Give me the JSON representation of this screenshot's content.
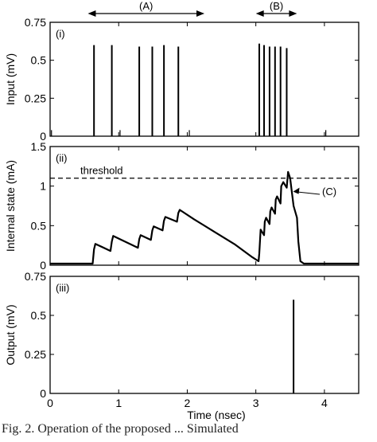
{
  "caption": "Fig. 2.  Operation of the proposed ...  Simulated",
  "top_annotations": [
    {
      "label": "(A)",
      "x_start": 0.55,
      "x_end": 2.25
    },
    {
      "label": "(B)",
      "x_start": 3.0,
      "x_end": 3.6
    }
  ],
  "chart_data": [
    {
      "type": "line",
      "panel_label": "(i)",
      "ylabel": "Input (mV)",
      "xlabel": "",
      "xlim": [
        0,
        4.5
      ],
      "ylim": [
        0,
        0.75
      ],
      "yticks": [
        "0",
        "0.25",
        "0.5",
        "0.75"
      ],
      "grid": false,
      "series": [
        {
          "style": "spikes",
          "spike_times": [
            0.64,
            0.9,
            1.3,
            1.49,
            1.66,
            1.87,
            3.05,
            3.12,
            3.2,
            3.28,
            3.36,
            3.45
          ],
          "spike_heights": [
            0.6,
            0.6,
            0.59,
            0.59,
            0.6,
            0.59,
            0.61,
            0.6,
            0.59,
            0.59,
            0.59,
            0.58
          ]
        },
        {
          "style": "noise_spikes",
          "spike_times": [
            0.02,
            1.02,
            2.03,
            4.02
          ],
          "spike_heights": [
            0.04,
            0.04,
            0.04,
            0.04
          ]
        }
      ]
    },
    {
      "type": "line",
      "panel_label": "(ii)",
      "ylabel": "Internal state (mA)",
      "xlabel": "",
      "xlim": [
        0,
        4.5
      ],
      "ylim": [
        0,
        1.5
      ],
      "yticks": [
        "0",
        "0.5",
        "1",
        "1.5"
      ],
      "grid": false,
      "threshold": {
        "value": 1.1,
        "label": "threshold"
      },
      "annotation": {
        "label": "(C)",
        "x": 3.52,
        "y": 0.93
      },
      "series": [
        {
          "points": [
            [
              0,
              0.02
            ],
            [
              0.62,
              0.02
            ],
            [
              0.64,
              0.2
            ],
            [
              0.66,
              0.27
            ],
            [
              0.88,
              0.18
            ],
            [
              0.9,
              0.3
            ],
            [
              0.92,
              0.37
            ],
            [
              1.28,
              0.22
            ],
            [
              1.3,
              0.33
            ],
            [
              1.32,
              0.38
            ],
            [
              1.47,
              0.32
            ],
            [
              1.49,
              0.44
            ],
            [
              1.51,
              0.49
            ],
            [
              1.64,
              0.44
            ],
            [
              1.66,
              0.56
            ],
            [
              1.68,
              0.61
            ],
            [
              1.85,
              0.55
            ],
            [
              1.87,
              0.66
            ],
            [
              1.89,
              0.7
            ],
            [
              2.1,
              0.58
            ],
            [
              2.4,
              0.42
            ],
            [
              2.7,
              0.26
            ],
            [
              2.95,
              0.1
            ],
            [
              3.04,
              0.05
            ],
            [
              3.05,
              0.15
            ],
            [
              3.07,
              0.45
            ],
            [
              3.12,
              0.38
            ],
            [
              3.13,
              0.55
            ],
            [
              3.15,
              0.6
            ],
            [
              3.2,
              0.52
            ],
            [
              3.21,
              0.68
            ],
            [
              3.23,
              0.73
            ],
            [
              3.28,
              0.65
            ],
            [
              3.29,
              0.83
            ],
            [
              3.31,
              0.87
            ],
            [
              3.36,
              0.78
            ],
            [
              3.37,
              1.0
            ],
            [
              3.4,
              1.05
            ],
            [
              3.45,
              0.98
            ],
            [
              3.47,
              1.18
            ],
            [
              3.5,
              1.1
            ],
            [
              3.55,
              0.75
            ],
            [
              3.6,
              0.6
            ],
            [
              3.62,
              0.3
            ],
            [
              3.65,
              0.05
            ],
            [
              3.7,
              0.02
            ],
            [
              4.5,
              0.02
            ]
          ]
        }
      ]
    },
    {
      "type": "line",
      "panel_label": "(iii)",
      "ylabel": "Output (mV)",
      "xlabel": "Time (nsec)",
      "xlim": [
        0,
        4.5
      ],
      "ylim": [
        0,
        0.75
      ],
      "yticks": [
        "0",
        "0.25",
        "0.5",
        "0.75"
      ],
      "xticks": [
        "0",
        "1",
        "2",
        "3",
        "4"
      ],
      "grid": false,
      "series": [
        {
          "style": "spikes",
          "spike_times": [
            3.55
          ],
          "spike_heights": [
            0.6
          ]
        }
      ]
    }
  ]
}
